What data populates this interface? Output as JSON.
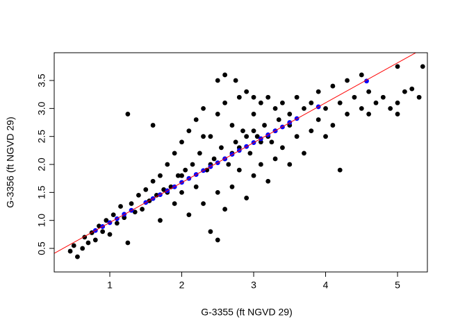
{
  "chart_data": {
    "type": "scatter",
    "x_label": "G-3355 (ft NGVD 29)",
    "y_label": "G-3356 (ft NGVD 29)",
    "xlim": [
      0.227,
      5.415
    ],
    "ylim": [
      0.079,
      3.996
    ],
    "xticks": [
      1,
      2,
      3,
      4,
      5
    ],
    "yticks": [
      0.5,
      {
        "value": 1,
        "label": "1.0"
      },
      1.5,
      {
        "value": 2,
        "label": "2.0"
      },
      2.5,
      {
        "value": 3,
        "label": "3.0"
      },
      3.5
    ],
    "grid": false,
    "series": [
      {
        "color": "#000000",
        "x": [
          0.45,
          0.5,
          0.55,
          0.62,
          0.65,
          0.7,
          0.75,
          0.8,
          0.85,
          0.9,
          0.95,
          1.0,
          1.05,
          1.1,
          1.15,
          1.2,
          1.25,
          1.25,
          1.3,
          1.35,
          1.4,
          1.45,
          1.5,
          1.55,
          1.6,
          1.6,
          1.65,
          1.7,
          1.7,
          1.75,
          1.8,
          1.85,
          1.9,
          1.9,
          1.95,
          2.0,
          2.0,
          2.05,
          2.1,
          2.1,
          2.15,
          2.2,
          2.2,
          2.25,
          2.3,
          2.3,
          2.35,
          2.4,
          2.4,
          2.45,
          2.5,
          2.5,
          2.55,
          2.6,
          2.6,
          2.65,
          2.7,
          2.7,
          2.75,
          2.8,
          2.8,
          2.85,
          2.9,
          2.9,
          2.95,
          3.0,
          3.0,
          3.05,
          3.1,
          3.1,
          3.15,
          3.2,
          3.2,
          3.25,
          3.3,
          3.3,
          3.35,
          3.4,
          3.4,
          3.5,
          3.5,
          3.6,
          3.6,
          3.7,
          3.7,
          3.8,
          3.8,
          3.9,
          3.9,
          4.0,
          4.0,
          4.1,
          4.1,
          4.2,
          4.2,
          4.3,
          4.3,
          4.4,
          4.5,
          4.5,
          4.6,
          4.7,
          4.8,
          4.9,
          5.0,
          5.0,
          5.1,
          5.2,
          5.3,
          5.35,
          5.0,
          4.6,
          2.5,
          2.6,
          2.75,
          2.5,
          3.0,
          2.3,
          2.0,
          1.8,
          3.2,
          3.5,
          2.8,
          2.6,
          2.4,
          2.9,
          3.3,
          3.1,
          3.0,
          2.7
        ],
        "y": [
          0.45,
          0.55,
          0.35,
          0.5,
          0.7,
          0.6,
          0.78,
          0.65,
          0.9,
          0.8,
          1.0,
          0.75,
          1.1,
          0.95,
          1.25,
          1.05,
          0.6,
          2.9,
          1.3,
          1.15,
          1.45,
          1.2,
          1.55,
          1.35,
          1.7,
          2.7,
          1.45,
          1.8,
          1.0,
          1.55,
          2.0,
          1.6,
          2.2,
          1.3,
          1.8,
          2.4,
          1.5,
          1.9,
          2.6,
          1.1,
          2.0,
          2.8,
          1.6,
          2.2,
          3.0,
          1.3,
          1.9,
          2.5,
          0.8,
          2.1,
          2.9,
          1.5,
          2.3,
          3.1,
          1.2,
          2.0,
          2.7,
          1.6,
          2.4,
          3.2,
          1.9,
          2.6,
          3.3,
          1.4,
          2.2,
          2.9,
          1.8,
          2.5,
          3.1,
          2.0,
          2.7,
          3.2,
          1.7,
          2.4,
          3.0,
          2.1,
          2.8,
          3.1,
          2.3,
          2.9,
          2.0,
          3.2,
          2.5,
          3.0,
          2.2,
          3.1,
          2.6,
          3.3,
          2.8,
          3.0,
          2.5,
          3.4,
          2.7,
          3.1,
          1.9,
          3.5,
          2.9,
          3.2,
          3.0,
          3.6,
          3.3,
          3.1,
          3.2,
          3.0,
          3.1,
          3.75,
          3.3,
          3.35,
          3.2,
          3.75,
          2.9,
          2.9,
          0.65,
          3.6,
          3.5,
          3.5,
          3.2,
          2.5,
          1.8,
          1.5,
          2.5,
          2.7,
          2.3,
          2.1,
          2.0,
          2.5,
          2.6,
          2.4,
          2.6,
          2.2
        ]
      },
      {
        "color": "#0000ff",
        "x": [
          0.8,
          0.9,
          1.0,
          1.1,
          1.2,
          1.3,
          1.5,
          1.6,
          1.7,
          1.8,
          1.9,
          2.0,
          2.1,
          2.2,
          2.3,
          2.4,
          2.5,
          2.6,
          2.7,
          2.8,
          2.9,
          3.0,
          3.1,
          3.2,
          3.3,
          3.4,
          3.5,
          3.6,
          3.9,
          4.57
        ],
        "y": [
          0.82,
          0.89,
          0.96,
          1.03,
          1.11,
          1.18,
          1.32,
          1.39,
          1.46,
          1.53,
          1.6,
          1.68,
          1.75,
          1.82,
          1.89,
          1.96,
          2.03,
          2.1,
          2.18,
          2.25,
          2.32,
          2.39,
          2.46,
          2.53,
          2.6,
          2.67,
          2.75,
          2.82,
          3.03,
          3.49
        ]
      }
    ],
    "abline": {
      "intercept": 0.25,
      "slope": 0.713,
      "color": "#ff0000"
    }
  }
}
